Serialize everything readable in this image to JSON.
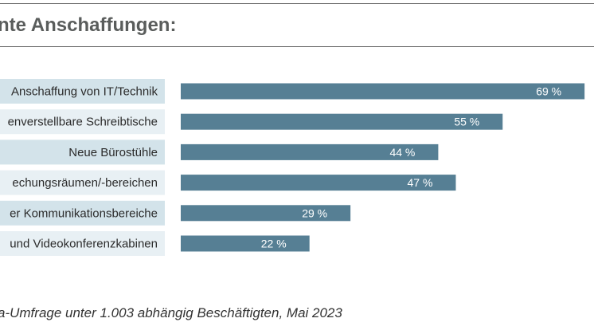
{
  "colors": {
    "bar": "#567f94",
    "label_band_odd": "#d3e3ea",
    "label_band_even": "#e8f0f4",
    "label_text": "#2b2b2b",
    "value_text": "#ffffff"
  },
  "chart_data": {
    "type": "bar",
    "orientation": "horizontal",
    "title": "nte Anschaffungen:",
    "categories": [
      "Anschaffung von IT/Technik",
      "enverstellbare Schreibtische",
      "Neue Bürostühle",
      "echungsräumen/-bereichen",
      "er Kommunikationsbereiche",
      "und Videokonferenzkabinen"
    ],
    "values": [
      69,
      55,
      44,
      47,
      29,
      22
    ],
    "value_labels": [
      "69 %",
      "55 %",
      "44 %",
      "47 %",
      "29 %",
      "22 %"
    ],
    "unit": "%",
    "xlim": [
      0,
      100
    ],
    "grid": false,
    "source": "a-Umfrage unter 1.003 abhängig Beschäftigten, Mai 2023"
  }
}
